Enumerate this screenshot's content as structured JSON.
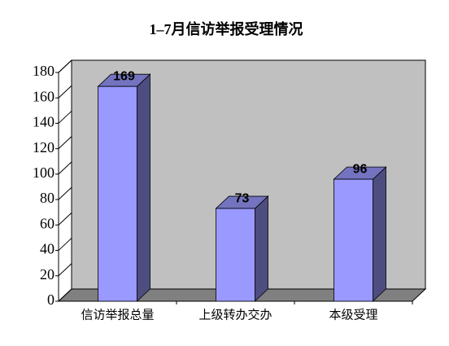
{
  "chart_data": {
    "type": "bar3d",
    "title": "1–7月信访举报受理情况",
    "categories": [
      "信访举报总量",
      "上级转办交办",
      "本级受理"
    ],
    "values": [
      169,
      73,
      96
    ],
    "color": "#9999ff",
    "ylim": [
      0,
      180
    ],
    "yticks": [
      0,
      20,
      40,
      60,
      80,
      100,
      120,
      140,
      160,
      180
    ]
  }
}
